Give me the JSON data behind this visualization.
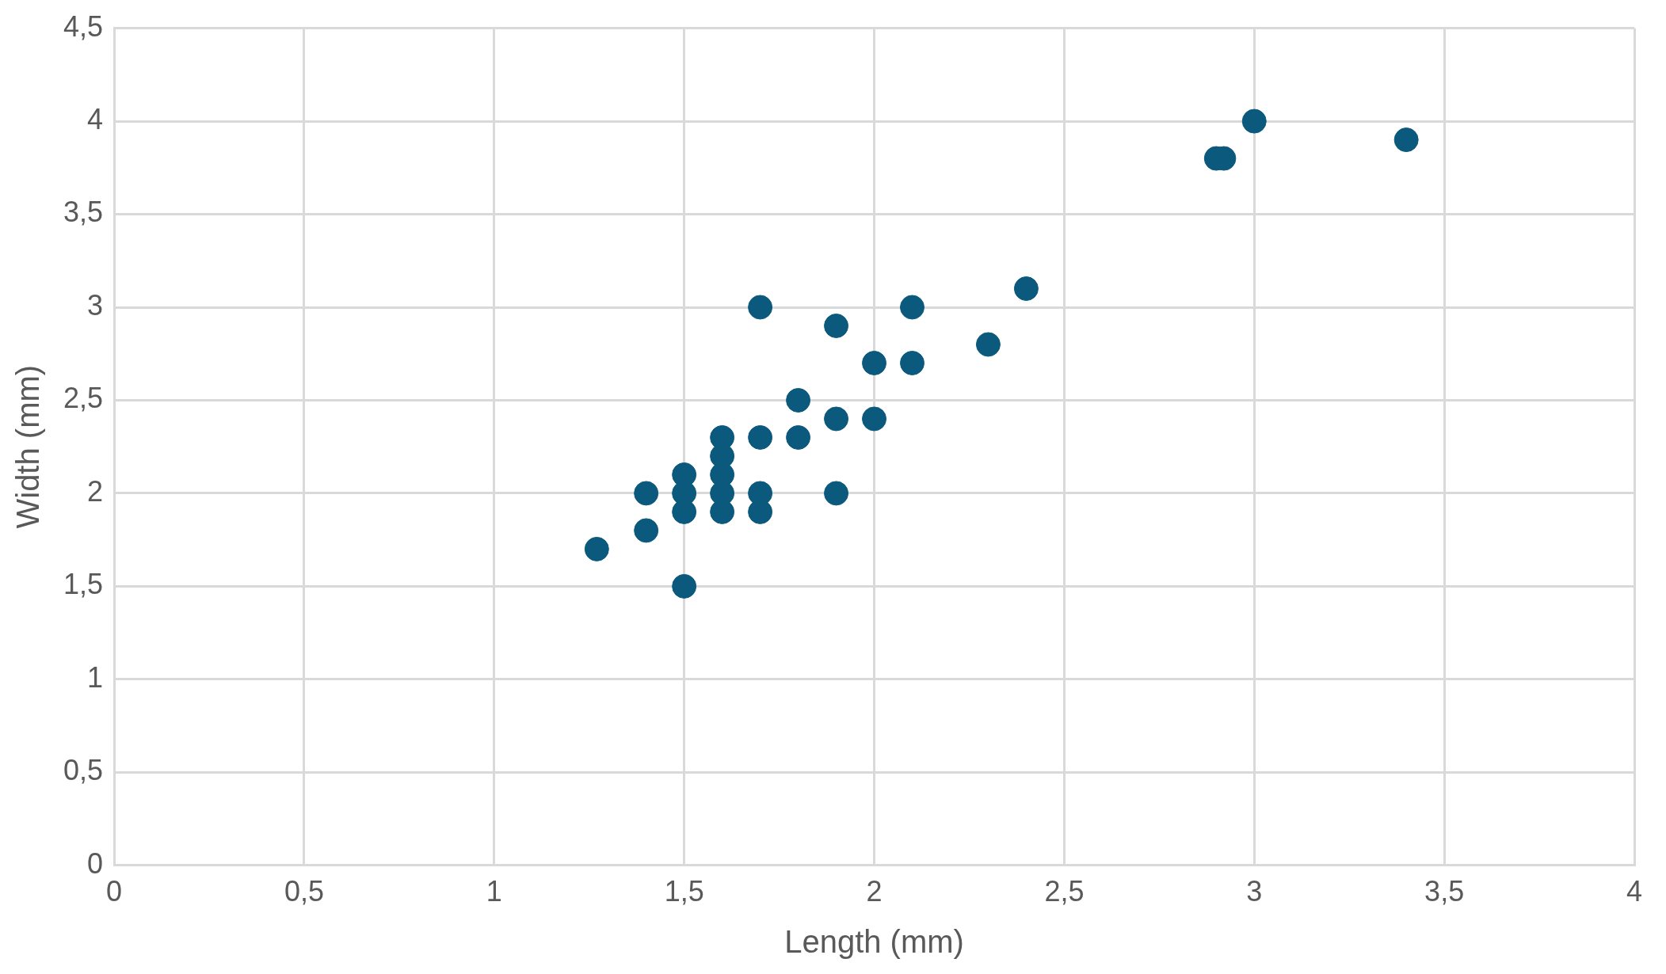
{
  "chart_data": {
    "type": "scatter",
    "xlabel": "Length (mm)",
    "ylabel": "Width (mm)",
    "series": [
      {
        "color": "#0b5a7e",
        "x": [
          1.27,
          1.4,
          1.4,
          1.5,
          1.5,
          1.5,
          1.5,
          1.6,
          1.6,
          1.6,
          1.6,
          1.6,
          1.7,
          1.7,
          1.7,
          1.7,
          1.8,
          1.8,
          1.9,
          1.9,
          1.9,
          2.0,
          2.0,
          2.1,
          2.1,
          2.3,
          2.4,
          2.9,
          2.92,
          3.0,
          3.4
        ],
        "values": [
          1.7,
          2.0,
          1.8,
          1.5,
          2.1,
          2.0,
          1.9,
          2.3,
          2.2,
          2.1,
          2.0,
          1.9,
          2.0,
          1.9,
          2.3,
          3.0,
          2.5,
          2.3,
          2.9,
          2.4,
          2.0,
          2.7,
          2.4,
          3.0,
          2.7,
          2.8,
          3.1,
          3.8,
          3.8,
          4.0,
          3.9
        ]
      }
    ],
    "xlim": [
      0,
      4
    ],
    "xticks": [
      0,
      {
        "value": 0.5,
        "label": "0,5"
      },
      1,
      {
        "value": 1.5,
        "label": "1,5"
      },
      2,
      {
        "value": 2.5,
        "label": "2,5"
      },
      3,
      {
        "value": 3.5,
        "label": "3,5"
      },
      4
    ],
    "ylim": [
      0,
      4.5
    ],
    "yticks": [
      0,
      {
        "value": 0.5,
        "label": "0,5"
      },
      1,
      {
        "value": 1.5,
        "label": "1,5"
      },
      2,
      {
        "value": 2.5,
        "label": "2,5"
      },
      3,
      {
        "value": 3.5,
        "label": "3,5"
      },
      4,
      {
        "value": 4.5,
        "label": "4,5"
      }
    ],
    "grid": true,
    "marker": "circle",
    "legend": false
  }
}
